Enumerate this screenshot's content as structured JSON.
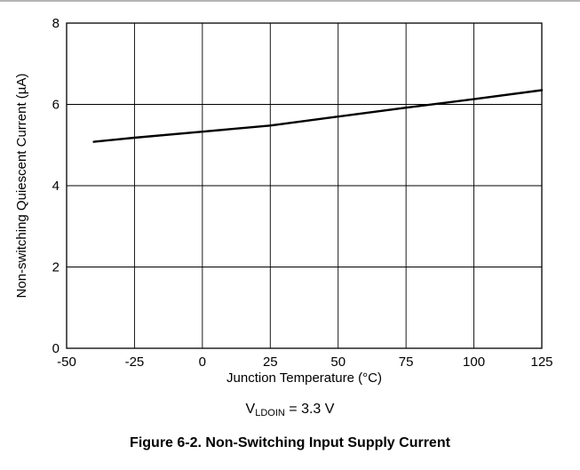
{
  "figure": {
    "caption": "Figure 6-2. Non-Switching Input Supply Current",
    "condition": {
      "prefix": "V",
      "subscript": "LDOIN",
      "suffix": " = 3.3 V"
    }
  },
  "colors": {
    "line": "#000000",
    "grid": "#000000",
    "top_rule": "#b5b5b5"
  },
  "chart_data": {
    "type": "line",
    "title": "",
    "xlabel": "Junction Temperature (°C)",
    "ylabel": "Non-switching Quiescent Current (µA)",
    "xlim": [
      -50,
      125
    ],
    "ylim": [
      0,
      8
    ],
    "xticks": [
      -50,
      -25,
      0,
      25,
      50,
      75,
      100,
      125
    ],
    "yticks": [
      0,
      2,
      4,
      6,
      8
    ],
    "grid": true,
    "series": [
      {
        "x": [
          -40,
          -25,
          0,
          25,
          50,
          75,
          100,
          125
        ],
        "y": [
          5.08,
          5.18,
          5.33,
          5.48,
          5.7,
          5.92,
          6.13,
          6.35
        ]
      }
    ]
  }
}
